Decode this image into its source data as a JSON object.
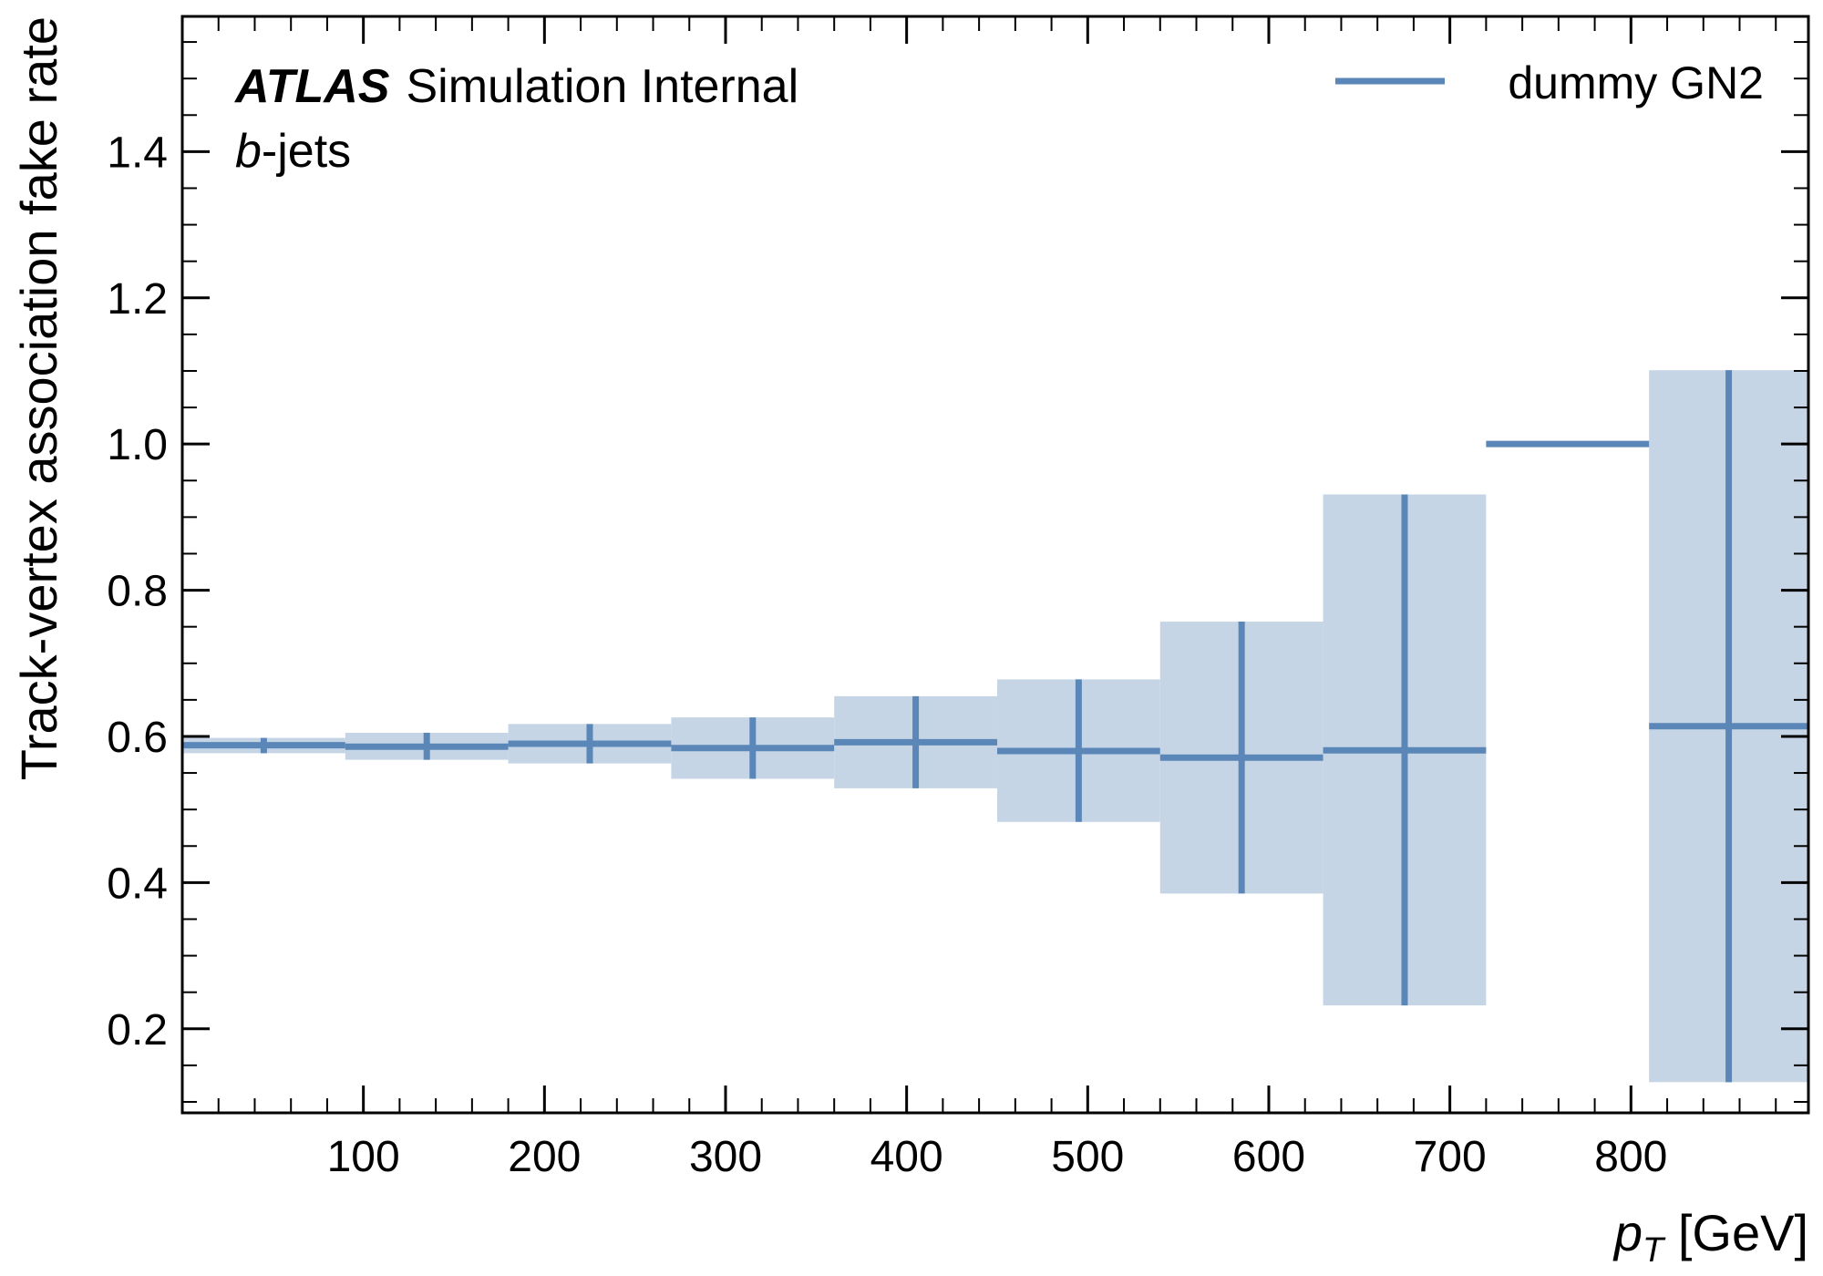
{
  "chart_data": {
    "type": "line",
    "title": "",
    "xlabel": "p_T [GeV]",
    "xlabel_parts": {
      "symbol": "p",
      "subscript": "T",
      "unit": " [GeV]"
    },
    "ylabel": "Track-vertex association fake rate",
    "xlim": [
      0,
      898
    ],
    "ylim": [
      0.085,
      1.585
    ],
    "x_major_ticks": [
      100,
      200,
      300,
      400,
      500,
      600,
      700,
      800
    ],
    "x_tick_labels": [
      "100",
      "200",
      "300",
      "400",
      "500",
      "600",
      "700",
      "800"
    ],
    "x_minor_step": 20,
    "y_major_ticks": [
      0.2,
      0.4,
      0.6,
      0.8,
      1.0,
      1.2,
      1.4
    ],
    "y_tick_labels": [
      "0.2",
      "0.4",
      "0.6",
      "0.8",
      "1.0",
      "1.2",
      "1.4"
    ],
    "y_minor_step": 0.05,
    "grid": false,
    "legend_position": "top-right",
    "annotations": {
      "experiment": "ATLAS",
      "status": "Simulation Internal",
      "selection_symbol": "b",
      "selection_suffix": "-jets"
    },
    "series": [
      {
        "name": "dummy GN2",
        "color": "#5b87b8",
        "band_color": "#c6d5e6",
        "bins": [
          {
            "x_low": 0,
            "x_high": 90,
            "value": 0.588,
            "err_low": 0.577,
            "err_high": 0.598
          },
          {
            "x_low": 90,
            "x_high": 180,
            "value": 0.586,
            "err_low": 0.568,
            "err_high": 0.605
          },
          {
            "x_low": 180,
            "x_high": 270,
            "value": 0.59,
            "err_low": 0.563,
            "err_high": 0.617
          },
          {
            "x_low": 270,
            "x_high": 360,
            "value": 0.584,
            "err_low": 0.542,
            "err_high": 0.626
          },
          {
            "x_low": 360,
            "x_high": 450,
            "value": 0.592,
            "err_low": 0.529,
            "err_high": 0.655
          },
          {
            "x_low": 450,
            "x_high": 540,
            "value": 0.58,
            "err_low": 0.483,
            "err_high": 0.678
          },
          {
            "x_low": 540,
            "x_high": 630,
            "value": 0.571,
            "err_low": 0.385,
            "err_high": 0.757
          },
          {
            "x_low": 630,
            "x_high": 720,
            "value": 0.581,
            "err_low": 0.232,
            "err_high": 0.931
          },
          {
            "x_low": 720,
            "x_high": 810,
            "value": 1.0,
            "err_low": 1.0,
            "err_high": 1.0
          },
          {
            "x_low": 810,
            "x_high": 898,
            "value": 0.614,
            "err_low": 0.127,
            "err_high": 1.101
          }
        ]
      }
    ]
  }
}
